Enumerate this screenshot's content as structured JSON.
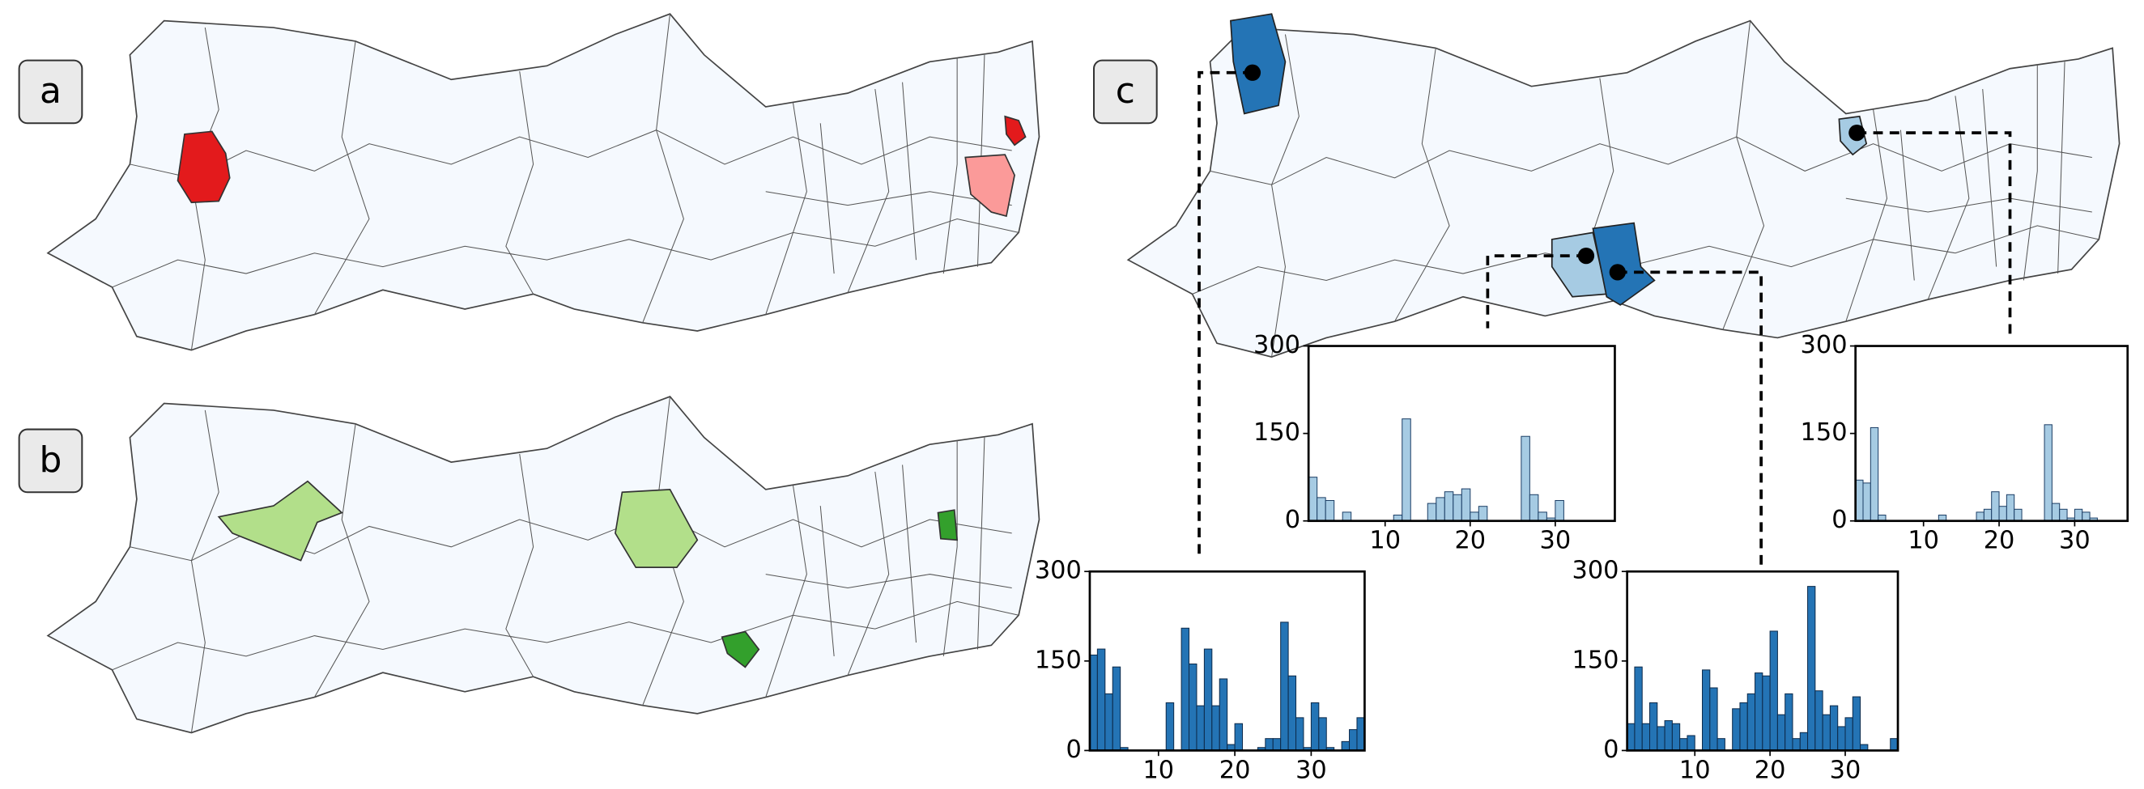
{
  "panel_labels": [
    "a",
    "b",
    "c"
  ],
  "chart_data": [
    {
      "type": "histogram",
      "color": "#a6cbe3",
      "edgecolor": "#1d3f66",
      "bins": [
        1,
        2,
        3,
        4,
        5,
        6,
        7,
        8,
        9,
        10,
        11,
        12,
        13,
        14,
        15,
        16,
        17,
        18,
        19,
        20,
        21,
        22,
        23,
        24,
        25,
        26,
        27,
        28,
        29,
        30,
        31,
        32,
        33,
        34,
        35,
        36,
        37
      ],
      "values": [
        75,
        40,
        35,
        0,
        15,
        0,
        0,
        0,
        0,
        0,
        10,
        175,
        0,
        0,
        30,
        40,
        50,
        45,
        55,
        15,
        25,
        0,
        0,
        0,
        0,
        145,
        45,
        15,
        5,
        35,
        0,
        0,
        0,
        0,
        0,
        0
      ],
      "xlim": [
        1,
        37
      ],
      "ylim": [
        0,
        300
      ],
      "xticks": [
        10,
        20,
        30
      ],
      "yticks": [
        0,
        150,
        300
      ]
    },
    {
      "type": "histogram",
      "color": "#a6cbe3",
      "edgecolor": "#1d3f66",
      "bins": [
        1,
        2,
        3,
        4,
        5,
        6,
        7,
        8,
        9,
        10,
        11,
        12,
        13,
        14,
        15,
        16,
        17,
        18,
        19,
        20,
        21,
        22,
        23,
        24,
        25,
        26,
        27,
        28,
        29,
        30,
        31,
        32,
        33,
        34,
        35,
        36,
        37
      ],
      "values": [
        70,
        65,
        160,
        10,
        0,
        0,
        0,
        0,
        0,
        0,
        0,
        10,
        0,
        0,
        0,
        0,
        15,
        20,
        50,
        25,
        45,
        20,
        0,
        0,
        0,
        165,
        30,
        20,
        5,
        20,
        15,
        5,
        0,
        0,
        0,
        0
      ],
      "xlim": [
        1,
        37
      ],
      "ylim": [
        0,
        300
      ],
      "xticks": [
        10,
        20,
        30
      ],
      "yticks": [
        0,
        150,
        300
      ]
    },
    {
      "type": "histogram",
      "color": "#2474b5",
      "edgecolor": "#0d2a4a",
      "bins": [
        1,
        2,
        3,
        4,
        5,
        6,
        7,
        8,
        9,
        10,
        11,
        12,
        13,
        14,
        15,
        16,
        17,
        18,
        19,
        20,
        21,
        22,
        23,
        24,
        25,
        26,
        27,
        28,
        29,
        30,
        31,
        32,
        33,
        34,
        35,
        36,
        37
      ],
      "values": [
        160,
        170,
        95,
        140,
        5,
        0,
        0,
        0,
        0,
        0,
        80,
        0,
        205,
        145,
        75,
        170,
        75,
        120,
        10,
        45,
        0,
        0,
        5,
        20,
        20,
        215,
        125,
        55,
        5,
        80,
        55,
        5,
        0,
        15,
        35,
        55
      ],
      "xlim": [
        1,
        37
      ],
      "ylim": [
        0,
        300
      ],
      "xticks": [
        10,
        20,
        30
      ],
      "yticks": [
        0,
        150,
        300
      ]
    },
    {
      "type": "histogram",
      "color": "#2474b5",
      "edgecolor": "#0d2a4a",
      "bins": [
        1,
        2,
        3,
        4,
        5,
        6,
        7,
        8,
        9,
        10,
        11,
        12,
        13,
        14,
        15,
        16,
        17,
        18,
        19,
        20,
        21,
        22,
        23,
        24,
        25,
        26,
        27,
        28,
        29,
        30,
        31,
        32,
        33,
        34,
        35,
        36,
        37
      ],
      "values": [
        45,
        140,
        45,
        80,
        40,
        50,
        45,
        20,
        25,
        0,
        135,
        105,
        20,
        0,
        70,
        80,
        95,
        130,
        125,
        200,
        60,
        95,
        20,
        30,
        275,
        100,
        60,
        75,
        40,
        55,
        90,
        10,
        0,
        0,
        0,
        20
      ],
      "xlim": [
        1,
        37
      ],
      "ylim": [
        0,
        300
      ],
      "xticks": [
        10,
        20,
        30
      ],
      "yticks": [
        0,
        150,
        300
      ]
    }
  ]
}
